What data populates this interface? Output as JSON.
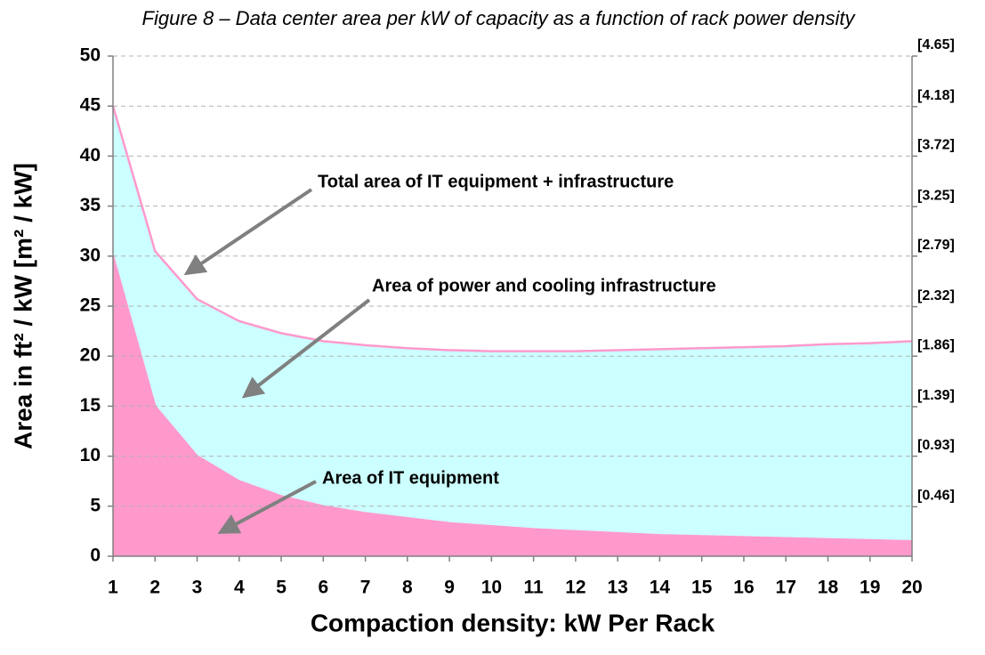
{
  "chart_data": {
    "type": "area",
    "title": "Figure 8 – Data center area per kW of capacity as a function of rack power density",
    "xlabel": "Compaction density: kW Per Rack",
    "ylabel": "Area in ft² / kW  [m² / kW]",
    "x": [
      1,
      2,
      3,
      4,
      5,
      6,
      7,
      8,
      9,
      10,
      11,
      12,
      13,
      14,
      15,
      16,
      17,
      18,
      19,
      20
    ],
    "series": [
      {
        "color": "#ccffff",
        "line_color": "#ff99cc",
        "values": [
          45,
          30.5,
          25.7,
          23.5,
          22.3,
          21.5,
          21.1,
          20.8,
          20.6,
          20.5,
          20.5,
          20.5,
          20.6,
          20.7,
          20.8,
          20.9,
          21.0,
          21.2,
          21.3,
          21.5
        ]
      },
      {
        "color": "#ff99cc",
        "line_color": "#ff99cc",
        "values": [
          30,
          15,
          10,
          7.5,
          6,
          5,
          4.3,
          3.8,
          3.3,
          3,
          2.7,
          2.5,
          2.3,
          2.1,
          2,
          1.9,
          1.8,
          1.7,
          1.6,
          1.5
        ]
      }
    ],
    "annotations": [
      "Total area of IT equipment + infrastructure",
      "Area of power and cooling infrastructure",
      "Area of IT equipment"
    ],
    "xlim": [
      1,
      20
    ],
    "xticks": [
      1,
      2,
      3,
      4,
      5,
      6,
      7,
      8,
      9,
      10,
      11,
      12,
      13,
      14,
      15,
      16,
      17,
      18,
      19,
      20
    ],
    "ylim": [
      0,
      50
    ],
    "yticks": [
      0,
      5,
      10,
      15,
      20,
      25,
      30,
      35,
      40,
      45,
      50
    ],
    "y2lim": [
      0,
      4.65
    ],
    "y2ticks": [
      {
        "value": 0.46,
        "label": "[0.46]"
      },
      {
        "value": 0.93,
        "label": "[0.93]"
      },
      {
        "value": 1.39,
        "label": "[1.39]"
      },
      {
        "value": 1.86,
        "label": "[1.86]"
      },
      {
        "value": 2.32,
        "label": "[2.32]"
      },
      {
        "value": 2.79,
        "label": "[2.79]"
      },
      {
        "value": 3.25,
        "label": "[3.25]"
      },
      {
        "value": 3.72,
        "label": "[3.72]"
      },
      {
        "value": 4.18,
        "label": "[4.18]"
      },
      {
        "value": 4.65,
        "label": "[4.65]"
      }
    ],
    "grid": true
  }
}
